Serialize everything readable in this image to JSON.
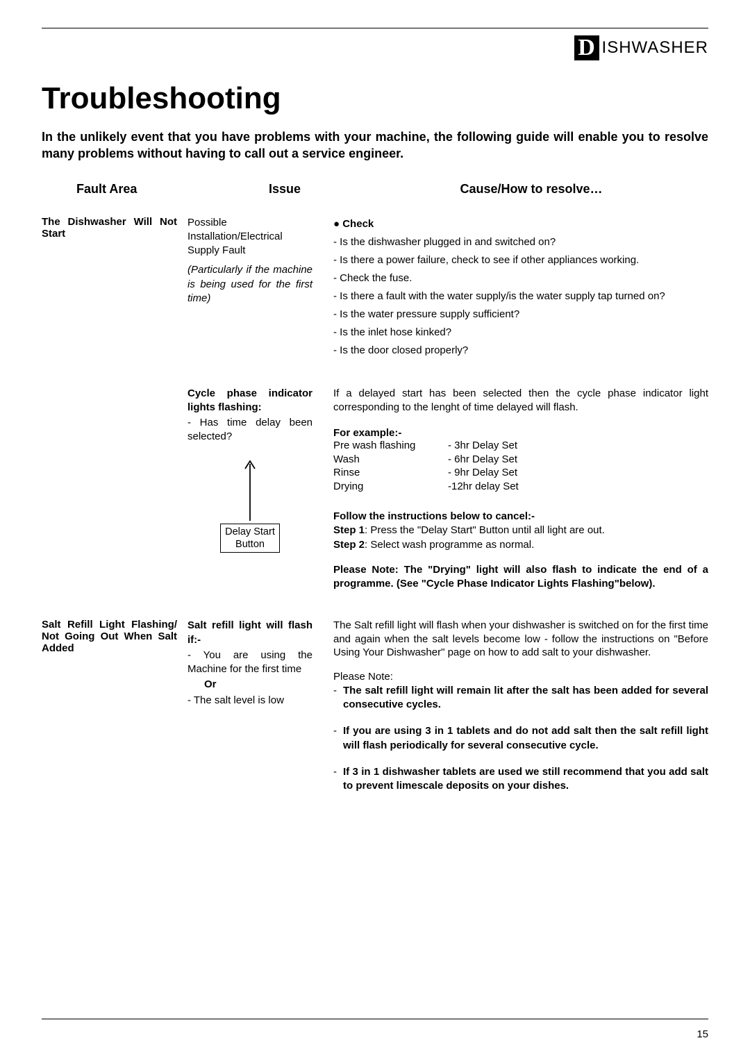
{
  "brand": {
    "d": "D",
    "rest": "ISHWASHER"
  },
  "title": "Troubleshooting",
  "intro": "In the unlikely event that you have problems with your machine, the following guide will enable you to resolve many problems without having to call out a service engineer.",
  "th": {
    "fault": "Fault Area",
    "issue": "Issue",
    "resolve": "Cause/How to resolve…"
  },
  "s1": {
    "fault": "The Dishwasher Will Not Start",
    "issue_main": "Possible Installation/Electrical Supply Fault",
    "issue_note": "(Particularly if the machine is being used for the first time)",
    "bullet": "●  Check",
    "checks": [
      "- Is the dishwasher plugged in and switched on?",
      "- Is there a power failure, check to see if other appliances working.",
      "- Check the fuse.",
      "- Is there a fault with the water supply/is the water supply tap turned on?",
      "- Is the water pressure supply sufficient?",
      "- Is the inlet hose kinked?",
      "- Is the door closed properly?"
    ]
  },
  "s2": {
    "issue_bold": "Cycle phase indicator lights flashing:",
    "issue_li": "-  Has time delay been selected?",
    "delay_arrow_height": 90,
    "delay_label_1": "Delay Start",
    "delay_label_2": "Button",
    "resolve_intro": " If a delayed start has been selected then the cycle phase indicator light corresponding to the lenght of time delayed will flash.",
    "example_title": "For example:-",
    "examples": [
      {
        "l": "Pre wash flashing",
        "r": "- 3hr Delay Set"
      },
      {
        "l": "Wash",
        "r": "- 6hr Delay Set"
      },
      {
        "l": "Rinse",
        "r": "- 9hr Delay Set"
      },
      {
        "l": "Drying",
        "r": "-12hr delay Set"
      }
    ],
    "follow_title": "Follow the instructions below to cancel:-",
    "step1_b": "Step 1",
    "step1_t": ": Press the \"Delay Start\" Button until all light are out.",
    "step2_b": "Step 2",
    "step2_t": ": Select wash programme as normal.",
    "note": "Please Note: The \"Drying\" light will also flash to indicate the end of a programme. (See \"Cycle Phase Indicator Lights Flashing\"below)."
  },
  "s3": {
    "fault": "Salt Refill Light Flashing/ Not Going Out When Salt Added",
    "issue_bold": "Salt refill light will flash if:-",
    "issue_li1": "-   You are using the Machine for the first time",
    "issue_or": "Or",
    "issue_li2": "-   The salt level is low",
    "resolve_intro": "The Salt refill light will flash when your dishwasher is switched on for the first time and again when the salt levels become low - follow the instructions on \"Before Using Your Dishwasher\" page on how to add salt to your dishwasher.",
    "note_head": "Please Note:",
    "notes": [
      "The salt refill light will remain lit after the salt has been added for several consecutive cycles.",
      "If you are using 3 in 1 tablets and do not add salt then the salt refill light will flash periodically for several consecutive cycle.",
      "If 3 in 1 dishwasher tablets are used we still recommend that you add salt to prevent limescale deposits on your dishes."
    ]
  },
  "page_number": "15"
}
